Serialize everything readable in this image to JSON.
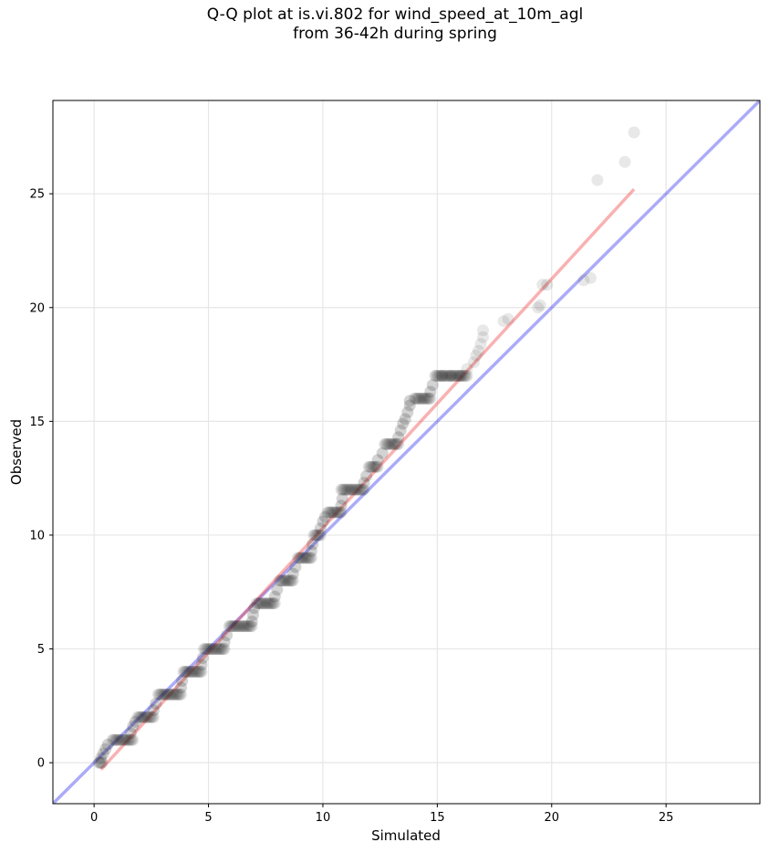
{
  "chart_data": {
    "type": "scatter",
    "title": "Q-Q plot at is.vi.802 for wind_speed_at_10m_agl",
    "subtitle": "from 36-42h during spring",
    "xlabel": "Simulated",
    "ylabel": "Observed",
    "xlim": [
      -1.8,
      29.1
    ],
    "ylim": [
      -1.8,
      29.1
    ],
    "xticks": [
      0,
      5,
      10,
      15,
      20,
      25
    ],
    "yticks": [
      0,
      5,
      10,
      15,
      20,
      25
    ],
    "grid": true,
    "colors": {
      "points": "#222222",
      "identity": "#0000ee",
      "fit": "#ee3333"
    },
    "reference_lines": [
      {
        "label": "identity",
        "x": [
          -1.8,
          29.1
        ],
        "y": [
          -1.8,
          29.1
        ]
      },
      {
        "label": "fit",
        "x": [
          0.3,
          23.6
        ],
        "y": [
          -0.3,
          25.2
        ]
      }
    ],
    "steps": [
      {
        "y": 0,
        "x0": 0.2,
        "x1": 0.35
      },
      {
        "y": 1,
        "x0": 0.8,
        "x1": 1.7
      },
      {
        "y": 2,
        "x0": 1.9,
        "x1": 2.6
      },
      {
        "y": 3,
        "x0": 2.8,
        "x1": 3.8
      },
      {
        "y": 4,
        "x0": 3.9,
        "x1": 4.7
      },
      {
        "y": 5,
        "x0": 4.8,
        "x1": 5.7
      },
      {
        "y": 6,
        "x0": 5.9,
        "x1": 6.9
      },
      {
        "y": 7,
        "x0": 7.1,
        "x1": 7.9
      },
      {
        "y": 8,
        "x0": 8.1,
        "x1": 8.7
      },
      {
        "y": 9,
        "x0": 8.9,
        "x1": 9.5
      },
      {
        "y": 10,
        "x0": 9.6,
        "x1": 9.9
      },
      {
        "y": 11,
        "x0": 10.2,
        "x1": 10.8
      },
      {
        "y": 12,
        "x0": 10.8,
        "x1": 11.8
      },
      {
        "y": 13,
        "x0": 12.0,
        "x1": 12.4
      },
      {
        "y": 14,
        "x0": 12.7,
        "x1": 13.3
      },
      {
        "y": 16,
        "x0": 14.0,
        "x1": 14.7
      },
      {
        "y": 17,
        "x0": 14.9,
        "x1": 16.3
      }
    ],
    "points": [
      {
        "x": 0.3,
        "y": 0.2
      },
      {
        "x": 0.4,
        "y": 0.4
      },
      {
        "x": 0.5,
        "y": 0.6
      },
      {
        "x": 0.6,
        "y": 0.8
      },
      {
        "x": 1.6,
        "y": 1.3
      },
      {
        "x": 1.7,
        "y": 1.6
      },
      {
        "x": 1.8,
        "y": 1.8
      },
      {
        "x": 2.6,
        "y": 2.3
      },
      {
        "x": 2.7,
        "y": 2.6
      },
      {
        "x": 3.8,
        "y": 3.3
      },
      {
        "x": 3.85,
        "y": 3.6
      },
      {
        "x": 4.7,
        "y": 4.3
      },
      {
        "x": 4.75,
        "y": 4.6
      },
      {
        "x": 5.7,
        "y": 5.3
      },
      {
        "x": 5.8,
        "y": 5.6
      },
      {
        "x": 6.9,
        "y": 6.2
      },
      {
        "x": 6.95,
        "y": 6.5
      },
      {
        "x": 7.0,
        "y": 6.8
      },
      {
        "x": 7.9,
        "y": 7.3
      },
      {
        "x": 8.0,
        "y": 7.6
      },
      {
        "x": 8.7,
        "y": 8.3
      },
      {
        "x": 8.8,
        "y": 8.6
      },
      {
        "x": 9.5,
        "y": 9.3
      },
      {
        "x": 9.55,
        "y": 9.6
      },
      {
        "x": 9.9,
        "y": 10.3
      },
      {
        "x": 10.0,
        "y": 10.6
      },
      {
        "x": 10.1,
        "y": 10.8
      },
      {
        "x": 10.8,
        "y": 11.3
      },
      {
        "x": 10.85,
        "y": 11.6
      },
      {
        "x": 11.8,
        "y": 12.3
      },
      {
        "x": 11.9,
        "y": 12.6
      },
      {
        "x": 12.4,
        "y": 13.3
      },
      {
        "x": 12.6,
        "y": 13.6
      },
      {
        "x": 13.3,
        "y": 14.3
      },
      {
        "x": 13.4,
        "y": 14.6
      },
      {
        "x": 13.5,
        "y": 14.9
      },
      {
        "x": 13.6,
        "y": 15.1
      },
      {
        "x": 13.7,
        "y": 15.4
      },
      {
        "x": 13.8,
        "y": 15.7
      },
      {
        "x": 13.8,
        "y": 15.9
      },
      {
        "x": 14.7,
        "y": 16.3
      },
      {
        "x": 14.8,
        "y": 16.6
      },
      {
        "x": 15.2,
        "y": 17.0
      },
      {
        "x": 15.6,
        "y": 17.0
      },
      {
        "x": 16.0,
        "y": 17.0
      },
      {
        "x": 16.3,
        "y": 17.3
      },
      {
        "x": 16.6,
        "y": 17.6
      },
      {
        "x": 16.7,
        "y": 17.9
      },
      {
        "x": 16.8,
        "y": 18.1
      },
      {
        "x": 16.9,
        "y": 18.4
      },
      {
        "x": 17.0,
        "y": 18.7
      },
      {
        "x": 17.0,
        "y": 19.0
      },
      {
        "x": 17.9,
        "y": 19.4
      },
      {
        "x": 18.1,
        "y": 19.5
      },
      {
        "x": 19.4,
        "y": 20.0
      },
      {
        "x": 19.5,
        "y": 20.1
      },
      {
        "x": 19.6,
        "y": 21.0
      },
      {
        "x": 19.8,
        "y": 21.0
      },
      {
        "x": 21.4,
        "y": 21.2
      },
      {
        "x": 21.7,
        "y": 21.3
      },
      {
        "x": 22.0,
        "y": 25.6
      },
      {
        "x": 23.2,
        "y": 26.4
      },
      {
        "x": 23.6,
        "y": 27.7
      }
    ]
  }
}
